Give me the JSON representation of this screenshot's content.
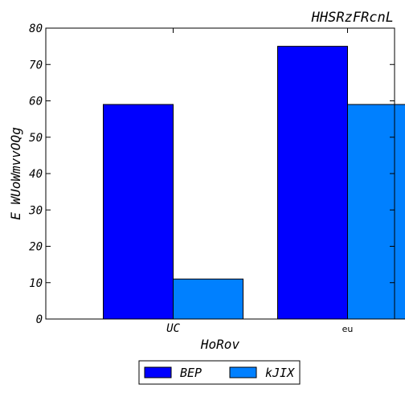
{
  "chart_data": {
    "type": "bar",
    "title": "HHSRzFRcnL",
    "xlabel": "HoRov",
    "ylabel": "E WUoWmvvOQg",
    "categories": [
      "UC",
      "eu"
    ],
    "series": [
      {
        "name": "BEP",
        "values": [
          59,
          75
        ],
        "color": "#0000ff"
      },
      {
        "name": "kJIX",
        "values": [
          11,
          59
        ],
        "color": "#0080ff"
      }
    ],
    "ylim": [
      0,
      80
    ],
    "yticks": [
      "0",
      "10",
      "20",
      "30",
      "40",
      "50",
      "60",
      "70",
      "80"
    ],
    "grid": false,
    "legend_position": "bottom-center"
  }
}
